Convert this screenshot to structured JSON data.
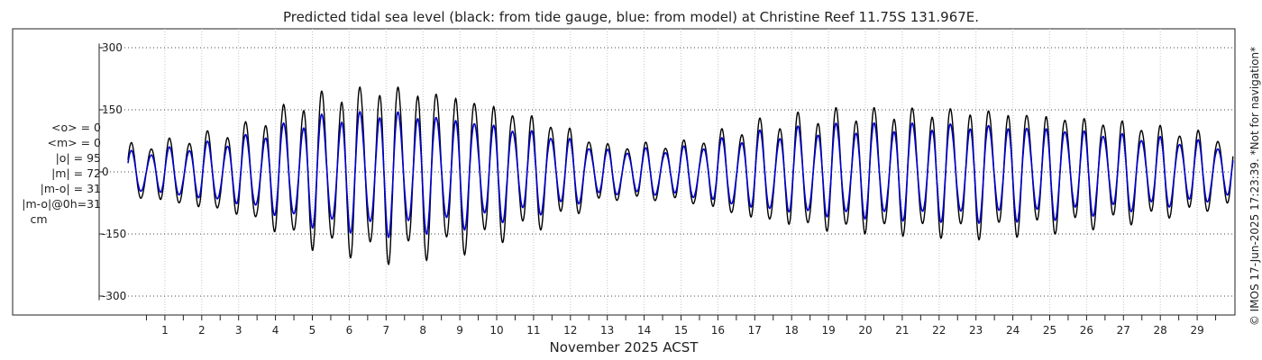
{
  "chart_data": {
    "type": "line",
    "title": "Predicted tidal sea level (black: from tide gauge, blue: from model) at Christine Reef 11.75S 131.967E.",
    "xlabel": "November 2025 ACST",
    "ylabel": "",
    "ylim": [
      -320,
      320
    ],
    "yticks": [
      300,
      150,
      0,
      -150,
      -300
    ],
    "ytick_labels": [
      "300",
      "150",
      "0",
      "-150",
      "-300"
    ],
    "xlim_days": [
      0.0,
      30.3
    ],
    "xticks": [
      "1",
      "2",
      "3",
      "4",
      "5",
      "6",
      "7",
      "8",
      "9",
      "10",
      "11",
      "12",
      "13",
      "14",
      "15",
      "16",
      "17",
      "18",
      "19",
      "20",
      "21",
      "22",
      "23",
      "24",
      "25",
      "26",
      "27",
      "28",
      "29"
    ],
    "grid": true,
    "series": [
      {
        "name": "from tide gauge",
        "color": "#000000",
        "period_hours": 12.4,
        "envelope_day": [
          0.5,
          3,
          5,
          7,
          9,
          11.5,
          13,
          15,
          17,
          19,
          21,
          23,
          25,
          27,
          29,
          30.3
        ],
        "envelope_amplitude": [
          75,
          120,
          210,
          240,
          215,
          140,
          75,
          80,
          135,
          165,
          170,
          175,
          160,
          140,
          110,
          90
        ]
      },
      {
        "name": "from model",
        "color": "#0000cc",
        "period_hours": 12.4,
        "envelope_day": [
          0.5,
          3,
          5,
          7,
          9,
          11.5,
          13,
          15,
          17,
          19,
          21,
          23,
          25,
          27,
          29,
          30.3
        ],
        "envelope_amplitude": [
          55,
          90,
          150,
          170,
          150,
          105,
          60,
          65,
          105,
          125,
          130,
          132,
          125,
          105,
          85,
          65
        ]
      }
    ]
  },
  "stats": {
    "mean_obs": "<o> = 0",
    "mean_model": "<m> = 0",
    "abs_obs": "|o| = 95",
    "abs_model": "|m| = 72",
    "abs_diff": "|m-o| = 31",
    "abs_diff_0h": "|m-o|@0h=31",
    "unit": "cm"
  },
  "credit": "© IMOS 17-Jun-2025 17:23:39. *Not for navigation*"
}
